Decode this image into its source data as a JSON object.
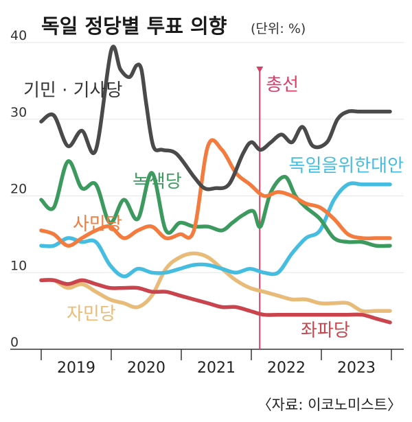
{
  "chart_data": {
    "type": "line",
    "title": "독일 정당별 투표 의향",
    "unit_label": "(단위: %)",
    "source": "〈자료: 이코노미스트〉",
    "ylim": [
      0,
      40
    ],
    "yticks": [
      "0",
      "10",
      "20",
      "30",
      "40"
    ],
    "xlim": [
      2018.62,
      2023.62
    ],
    "year_labels": [
      "2019",
      "2020",
      "2021",
      "2022",
      "2023"
    ],
    "grid": false,
    "event": {
      "label": "총선",
      "x": 2021.74,
      "color": "#d6406b"
    },
    "series": [
      {
        "name": "기민 · 기사당",
        "color": "#4a4a4a",
        "x": [
          2018.62,
          2018.8,
          2019.0,
          2019.2,
          2019.4,
          2019.62,
          2019.75,
          2019.88,
          2019.98,
          2020.05,
          2020.12,
          2020.22,
          2020.35,
          2020.55,
          2020.8,
          2020.95,
          2021.1,
          2021.3,
          2021.5,
          2021.62,
          2021.75,
          2021.9,
          2022.05,
          2022.2,
          2022.35,
          2022.5,
          2022.7,
          2022.85,
          2023.0,
          2023.15,
          2023.3,
          2023.45,
          2023.6
        ],
        "y": [
          29.7,
          30.5,
          26.5,
          28.5,
          26.0,
          39.0,
          36.5,
          35.5,
          37.0,
          36.5,
          32.0,
          26.5,
          26.0,
          25.5,
          22.5,
          21.0,
          21.0,
          21.5,
          25.5,
          27.0,
          26.0,
          27.0,
          28.0,
          27.0,
          29.0,
          26.5,
          27.0,
          30.0,
          31.0,
          31.0,
          31.0,
          31.0,
          31.0
        ]
      },
      {
        "name": "녹색당",
        "color": "#3c9a5f",
        "x": [
          2018.62,
          2018.8,
          2019.0,
          2019.2,
          2019.4,
          2019.6,
          2019.8,
          2020.0,
          2020.2,
          2020.4,
          2020.6,
          2020.8,
          2021.0,
          2021.2,
          2021.35,
          2021.5,
          2021.65,
          2021.75,
          2021.9,
          2022.1,
          2022.25,
          2022.4,
          2022.6,
          2022.8,
          2023.0,
          2023.2,
          2023.4,
          2023.6
        ],
        "y": [
          19.5,
          18.5,
          24.5,
          21.0,
          21.5,
          16.5,
          19.5,
          17.0,
          23.0,
          15.5,
          16.5,
          16.0,
          16.0,
          15.5,
          16.5,
          17.5,
          18.0,
          16.0,
          20.5,
          22.5,
          20.0,
          18.5,
          17.0,
          14.5,
          14.0,
          14.0,
          13.5,
          13.5
        ]
      },
      {
        "name": "독일을위한대안",
        "color": "#45bde0",
        "x": [
          2018.62,
          2018.8,
          2019.0,
          2019.2,
          2019.4,
          2019.6,
          2019.8,
          2020.0,
          2020.2,
          2020.4,
          2020.6,
          2020.8,
          2021.0,
          2021.2,
          2021.4,
          2021.6,
          2021.8,
          2022.0,
          2022.2,
          2022.4,
          2022.6,
          2022.8,
          2023.0,
          2023.2,
          2023.4,
          2023.6
        ],
        "y": [
          13.5,
          13.5,
          14.5,
          14.0,
          14.0,
          11.0,
          9.5,
          10.5,
          10.0,
          10.0,
          10.5,
          11.0,
          11.0,
          10.5,
          10.0,
          10.5,
          10.0,
          10.0,
          12.5,
          14.5,
          15.5,
          19.5,
          21.5,
          21.5,
          21.5,
          21.5
        ]
      },
      {
        "name": "사민당",
        "color": "#f47b3e",
        "x": [
          2018.62,
          2018.8,
          2019.0,
          2019.2,
          2019.4,
          2019.6,
          2019.8,
          2020.0,
          2020.2,
          2020.4,
          2020.6,
          2020.8,
          2021.0,
          2021.2,
          2021.4,
          2021.6,
          2021.8,
          2022.0,
          2022.2,
          2022.4,
          2022.6,
          2022.8,
          2023.0,
          2023.2,
          2023.4,
          2023.6
        ],
        "y": [
          15.5,
          15.0,
          13.5,
          14.5,
          15.5,
          16.0,
          14.5,
          15.5,
          16.0,
          14.5,
          15.0,
          15.5,
          26.5,
          26.0,
          23.0,
          21.5,
          20.0,
          20.5,
          20.0,
          19.0,
          18.5,
          17.0,
          15.0,
          14.5,
          14.5,
          14.5
        ]
      },
      {
        "name": "자민당",
        "color": "#e8bb78",
        "x": [
          2018.62,
          2018.8,
          2019.0,
          2019.2,
          2019.4,
          2019.6,
          2019.8,
          2020.0,
          2020.2,
          2020.4,
          2020.6,
          2020.8,
          2021.0,
          2021.2,
          2021.4,
          2021.6,
          2021.8,
          2022.0,
          2022.2,
          2022.4,
          2022.6,
          2022.8,
          2023.0,
          2023.2,
          2023.4,
          2023.6
        ],
        "y": [
          9.0,
          9.0,
          8.0,
          8.5,
          7.5,
          6.5,
          6.0,
          5.5,
          7.0,
          10.5,
          12.0,
          12.5,
          12.0,
          10.5,
          9.0,
          8.0,
          7.5,
          7.0,
          6.5,
          6.5,
          6.0,
          6.0,
          6.0,
          5.0,
          5.0,
          5.0
        ]
      },
      {
        "name": "좌파당",
        "color": "#c9444c",
        "x": [
          2018.62,
          2018.8,
          2019.0,
          2019.2,
          2019.4,
          2019.6,
          2019.8,
          2020.0,
          2020.2,
          2020.4,
          2020.6,
          2020.8,
          2021.0,
          2021.2,
          2021.4,
          2021.6,
          2021.8,
          2022.0,
          2022.2,
          2022.4,
          2022.6,
          2022.8,
          2023.0,
          2023.2,
          2023.4,
          2023.6
        ],
        "y": [
          9.0,
          9.0,
          8.5,
          9.0,
          8.5,
          8.0,
          8.0,
          8.0,
          7.5,
          7.5,
          7.0,
          6.5,
          6.0,
          5.5,
          5.5,
          5.0,
          4.5,
          4.5,
          4.5,
          4.5,
          4.5,
          4.5,
          4.5,
          4.5,
          4.0,
          3.5
        ]
      }
    ]
  }
}
